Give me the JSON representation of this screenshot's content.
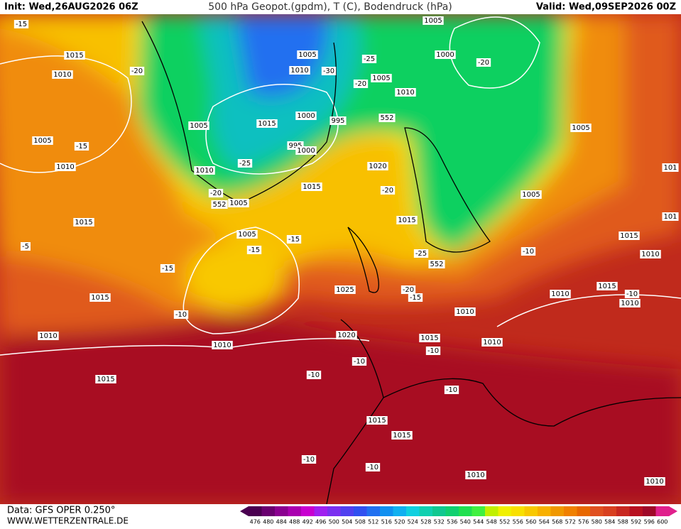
{
  "header": {
    "init": "Init: Wed,26AUG2026 06Z",
    "title": "500 hPa Geopot.(gpdm), T (C), Bodendruck (hPa)",
    "valid": "Valid: Wed,09SEP2026 00Z"
  },
  "footer": {
    "data": "Data: GFS OPER 0.250°",
    "site": "WWW.WETTERZENTRALE.DE"
  },
  "map_labels": [
    "1015",
    "1010",
    "-20",
    "1005",
    "-15",
    "1010",
    "1015",
    "-15",
    "1005",
    "1015",
    "1000",
    "995",
    "-25",
    "995",
    "1000",
    "1010",
    "-20",
    "1005",
    "1015",
    "1005",
    "-15",
    "-15",
    "-15",
    "-10",
    "1015",
    "1010",
    "1010",
    "1015",
    "1005",
    "1010",
    "-30",
    "-25",
    "1005",
    "-20",
    "1010",
    "552",
    "1020",
    "-20",
    "1015",
    "1025",
    "1020",
    "-25",
    "552",
    "-20",
    "-15",
    "1010",
    "1015",
    "-10",
    "-10",
    "-10",
    "1010",
    "-10",
    "1015",
    "1015",
    "-10",
    "-10",
    "1010",
    "1010",
    "1005",
    "1000",
    "-20",
    "1005",
    "1005",
    "-10",
    "1010",
    "1015",
    "1015",
    "1010",
    "-10",
    "1010",
    "101",
    "101",
    "-5",
    "552"
  ],
  "colorbar": {
    "values": [
      476,
      480,
      484,
      488,
      492,
      496,
      500,
      504,
      508,
      512,
      516,
      520,
      524,
      528,
      532,
      536,
      540,
      544,
      548,
      552,
      556,
      560,
      564,
      568,
      572,
      576,
      580,
      584,
      588,
      592,
      596,
      600
    ],
    "colors": [
      "#4a0050",
      "#6a0070",
      "#8a0090",
      "#aa00b0",
      "#c800d0",
      "#a020f0",
      "#7a30f0",
      "#5040f0",
      "#3050f0",
      "#2070f0",
      "#1090f0",
      "#10b0f0",
      "#10d0e0",
      "#10d0b0",
      "#10c890",
      "#10d070",
      "#20e050",
      "#40f040",
      "#c0f000",
      "#f0f000",
      "#f8e000",
      "#f8c800",
      "#f8b000",
      "#f09800",
      "#f08000",
      "#e86800",
      "#e05020",
      "#d84020",
      "#c82820",
      "#b81020",
      "#a00828",
      "#e0208c"
    ]
  }
}
